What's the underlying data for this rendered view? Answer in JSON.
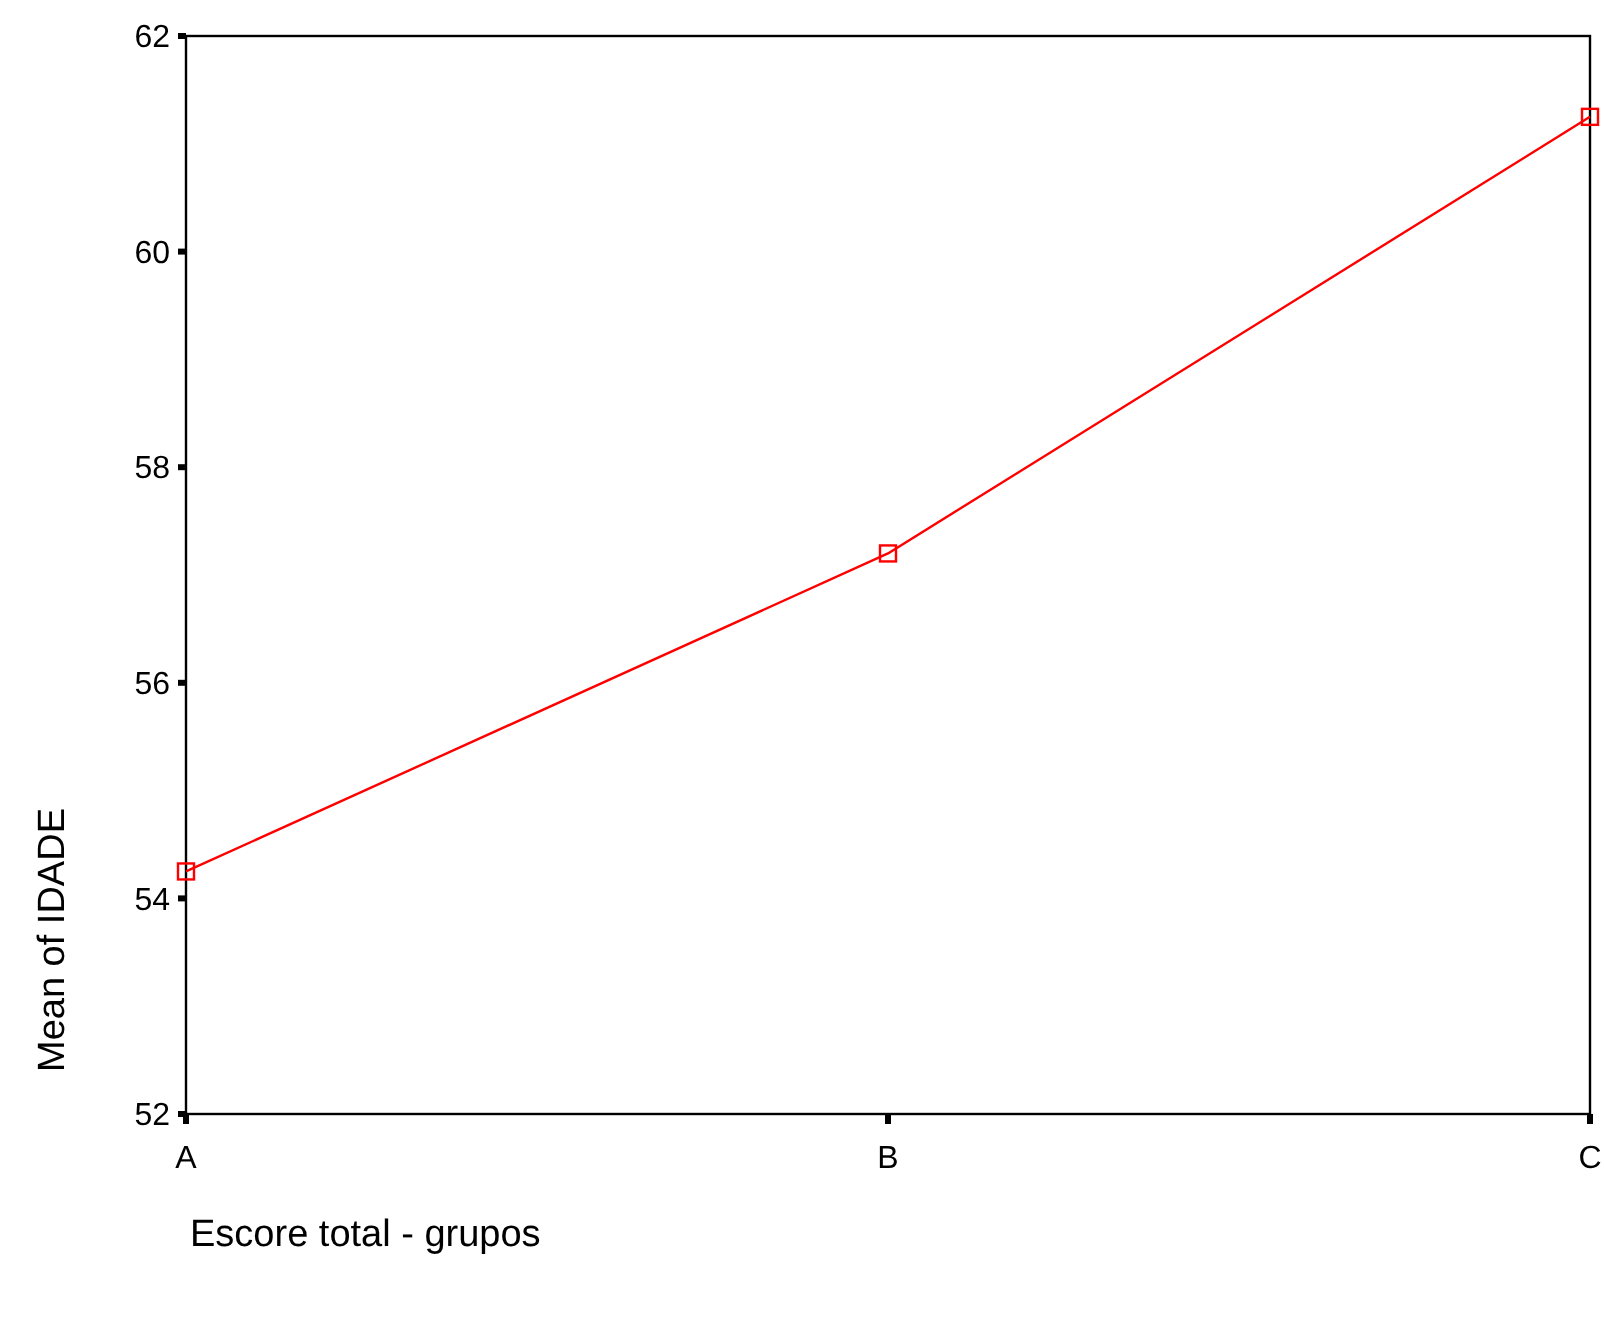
{
  "chart_data": {
    "type": "line",
    "xlabel": "Escore total - grupos",
    "ylabel": "Mean of IDADE",
    "categories": [
      "A",
      "B",
      "C"
    ],
    "series": [
      {
        "color": "#ff0000",
        "values": [
          54.25,
          57.2,
          61.25
        ]
      }
    ],
    "ylim": [
      52,
      62
    ],
    "yticks": [
      52,
      54,
      56,
      58,
      60,
      62
    ],
    "marker": "square",
    "line_style": "solid",
    "grid": false
  }
}
